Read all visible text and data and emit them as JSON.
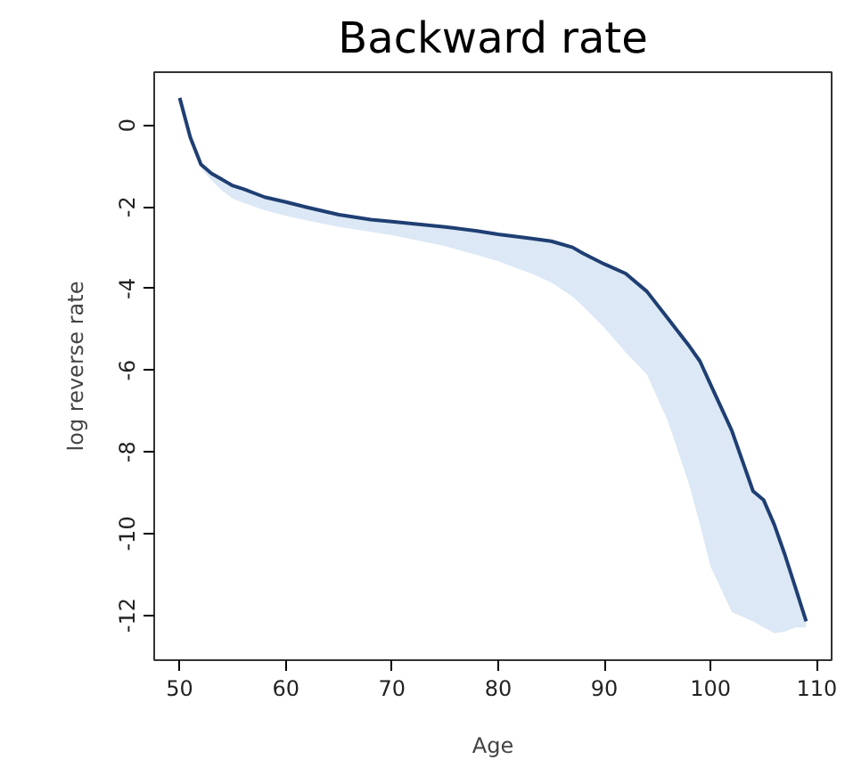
{
  "chart_data": {
    "type": "line",
    "title": "Backward rate",
    "xlabel": "Age",
    "ylabel": "log reverse rate",
    "x": [
      50,
      51,
      52,
      53,
      54,
      55,
      56,
      58,
      60,
      62,
      65,
      68,
      70,
      75,
      78,
      80,
      83,
      85,
      87,
      88,
      90,
      92,
      94,
      96,
      98,
      99,
      100,
      102,
      104,
      105,
      106,
      107,
      108,
      109
    ],
    "series": [
      {
        "color": "#1f3f73",
        "values": [
          0.67,
          -0.3,
          -0.96,
          -1.18,
          -1.33,
          -1.48,
          -1.56,
          -1.76,
          -1.88,
          -2.01,
          -2.19,
          -2.31,
          -2.36,
          -2.49,
          -2.59,
          -2.67,
          -2.77,
          -2.84,
          -2.99,
          -3.14,
          -3.4,
          -3.63,
          -4.07,
          -4.74,
          -5.41,
          -5.78,
          -6.35,
          -7.48,
          -8.96,
          -9.18,
          -9.78,
          -10.52,
          -11.33,
          -12.15
        ],
        "lower": [
          0.67,
          -0.35,
          -1.05,
          -1.35,
          -1.6,
          -1.8,
          -1.9,
          -2.08,
          -2.22,
          -2.33,
          -2.49,
          -2.61,
          -2.69,
          -2.96,
          -3.18,
          -3.33,
          -3.62,
          -3.85,
          -4.2,
          -4.44,
          -4.96,
          -5.56,
          -6.1,
          -7.26,
          -8.81,
          -9.78,
          -10.81,
          -11.92,
          -12.15,
          -12.3,
          -12.44,
          -12.4,
          -12.3,
          -12.3
        ],
        "upper": [
          0.67,
          -0.3,
          -0.96,
          -1.18,
          -1.33,
          -1.48,
          -1.56,
          -1.76,
          -1.88,
          -2.01,
          -2.19,
          -2.31,
          -2.36,
          -2.49,
          -2.59,
          -2.67,
          -2.77,
          -2.84,
          -2.99,
          -3.14,
          -3.4,
          -3.63,
          -4.07,
          -4.74,
          -5.41,
          -5.78,
          -6.35,
          -7.48,
          -8.96,
          -9.18,
          -9.78,
          -10.52,
          -11.33,
          -12.15
        ]
      }
    ],
    "xlim": [
      47.6,
      111.4
    ],
    "ylim": [
      -13.1,
      1.3
    ],
    "xticks": [
      50,
      60,
      70,
      80,
      90,
      100,
      110
    ],
    "yticks": [
      0,
      -2,
      -4,
      -6,
      -8,
      -10,
      -12
    ],
    "grid": false,
    "marker": "none",
    "line_style": "solid"
  }
}
